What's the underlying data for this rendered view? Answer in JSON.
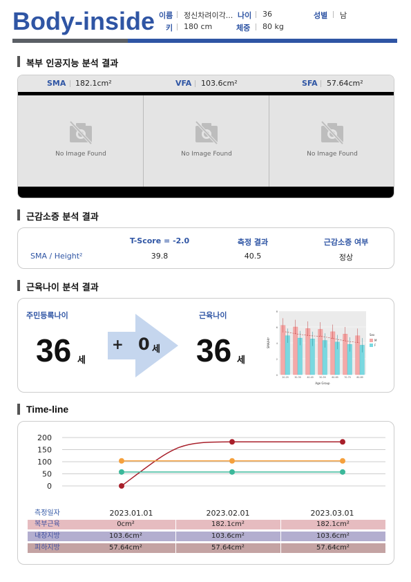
{
  "header": {
    "brand": "Body-inside",
    "name_label": "이름",
    "name_value": "정신차려이각...",
    "age_label": "나이",
    "age_value": "36",
    "sex_label": "성별",
    "sex_value": "남",
    "height_label": "키",
    "height_value": "180 cm",
    "weight_label": "체중",
    "weight_value": "80 kg"
  },
  "analysis": {
    "title": "복부 인공지능 분석 결과",
    "metrics": [
      {
        "label": "SMA",
        "value": "182.1cm²"
      },
      {
        "label": "VFA",
        "value": "103.6cm²"
      },
      {
        "label": "SFA",
        "value": "57.64cm²"
      }
    ],
    "no_image_text": "No Image Found"
  },
  "sarcopenia": {
    "title": "근감소증 분석 결과",
    "columns": [
      "T-Score = -2.0",
      "측정 결과",
      "근감소증 여부"
    ],
    "row_label": "SMA / Height²",
    "row_values": [
      "39.8",
      "40.5",
      "정상"
    ]
  },
  "muscle_age": {
    "title": "근육나이 분석 결과",
    "resident_label": "주민등록나이",
    "resident_age": "36",
    "unit": "세",
    "plus": "+",
    "delta": "0",
    "muscle_label": "근육나이",
    "muscle_age": "36"
  },
  "timeline": {
    "title": "Time-line",
    "row_header": "측정일자",
    "dates": [
      "2023.01.01",
      "2023.02.01",
      "2023.03.01"
    ],
    "rows": [
      {
        "label": "복부근육",
        "values": [
          "0cm²",
          "182.1cm²",
          "182.1cm²"
        ],
        "color": "#e6bcc0"
      },
      {
        "label": "내장지방",
        "values": [
          "103.6cm²",
          "103.6cm²",
          "103.6cm²"
        ],
        "color": "#b3aecf"
      },
      {
        "label": "피하지방",
        "values": [
          "57.64cm²",
          "57.64cm²",
          "57.64cm²"
        ],
        "color": "#c4a3a3"
      }
    ]
  },
  "chart_data": [
    {
      "type": "line",
      "title": "",
      "xlabel": "",
      "ylabel": "",
      "ylim": [
        0,
        200
      ],
      "yticks": [
        0,
        50,
        100,
        150,
        200
      ],
      "x": [
        "2023.01.01",
        "2023.02.01",
        "2023.03.01"
      ],
      "series": [
        {
          "values": [
            0,
            182.1,
            182.1
          ],
          "color": "#a81f2a"
        },
        {
          "values": [
            103.6,
            103.6,
            103.6
          ],
          "color": "#f5a03c"
        },
        {
          "values": [
            57.64,
            57.64,
            57.64
          ],
          "color": "#3cb89a"
        }
      ],
      "grid": true
    },
    {
      "type": "bar",
      "title": "",
      "xlabel": "Age Group",
      "ylabel": "SMA/Ht²",
      "legend_title": "Sex",
      "legend_position": "right",
      "categories": [
        "20-29",
        "30-39",
        "40-49",
        "50-59",
        "60-69",
        "70-79",
        "80-89"
      ],
      "ylim": [
        0,
        8
      ],
      "series": [
        {
          "name": "M",
          "values": [
            6.2,
            6.0,
            5.8,
            5.7,
            5.4,
            5.1,
            4.9
          ],
          "color": "#f4a9a8"
        },
        {
          "name": "F",
          "values": [
            4.9,
            4.6,
            4.5,
            4.3,
            4.1,
            3.8,
            3.7
          ],
          "color": "#7ad8e0"
        }
      ],
      "trend": [
        5.4,
        5.1,
        4.9,
        4.8,
        4.5,
        4.2,
        4.0
      ]
    }
  ]
}
